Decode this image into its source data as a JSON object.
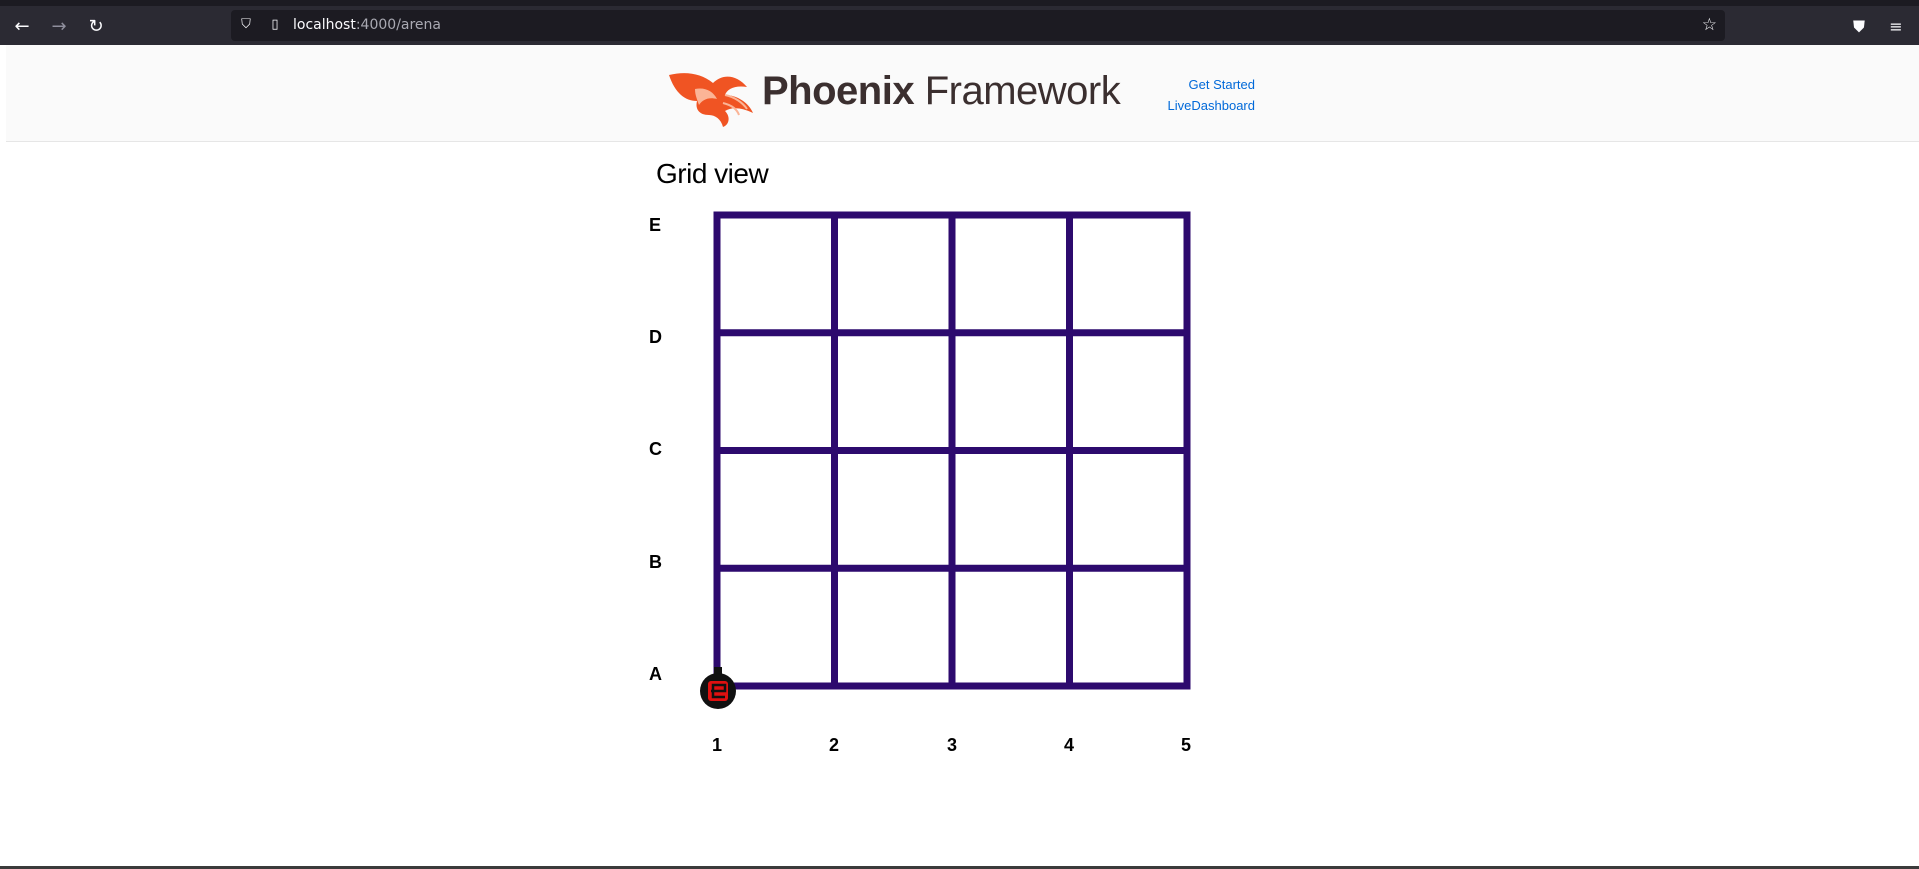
{
  "browser": {
    "url_host": "localhost",
    "url_rest": ":4000/arena"
  },
  "header": {
    "logo_bold": "Phoenix",
    "logo_light": "Framework",
    "links": [
      "Get Started",
      "LiveDashboard"
    ]
  },
  "main": {
    "title": "Grid view",
    "row_labels": [
      "E",
      "D",
      "C",
      "B",
      "A"
    ],
    "col_labels": [
      "1",
      "2",
      "3",
      "4",
      "5"
    ]
  },
  "grid": {
    "rows": 5,
    "cols": 5,
    "line_color": "#2d0a6e"
  },
  "robot": {
    "position": "A1",
    "color": "#e01010",
    "icon": "robot-icon"
  }
}
